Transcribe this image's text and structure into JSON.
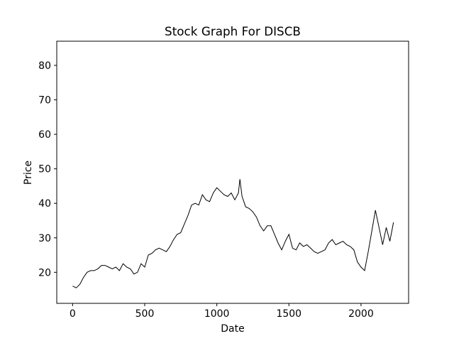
{
  "chart_data": {
    "type": "line",
    "title": "Stock Graph For DISCB",
    "xlabel": "Date",
    "ylabel": "Price",
    "xlim": [
      -110,
      2330
    ],
    "ylim": [
      11,
      87
    ],
    "x_ticks": [
      0,
      500,
      1000,
      1500,
      2000
    ],
    "y_ticks": [
      20,
      30,
      40,
      50,
      60,
      70,
      80
    ],
    "x_tick_labels": [
      "0",
      "500",
      "1000",
      "1500",
      "2000"
    ],
    "y_tick_labels": [
      "20",
      "30",
      "40",
      "50",
      "60",
      "70",
      "80"
    ],
    "grid": false,
    "legend": "none",
    "line_color": "#000000",
    "series": [
      {
        "x": [
          0,
          25,
          50,
          75,
          100,
          125,
          150,
          175,
          200,
          225,
          250,
          275,
          300,
          325,
          350,
          375,
          400,
          425,
          450,
          475,
          500,
          525,
          550,
          575,
          600,
          625,
          650,
          675,
          700,
          725,
          750,
          775,
          800,
          825,
          850,
          875,
          900,
          925,
          950,
          975,
          1000,
          1025,
          1050,
          1075,
          1100,
          1125,
          1150,
          1160,
          1175,
          1200,
          1225,
          1250,
          1275,
          1300,
          1325,
          1350,
          1375,
          1400,
          1425,
          1450,
          1475,
          1500,
          1525,
          1550,
          1575,
          1600,
          1625,
          1650,
          1675,
          1700,
          1725,
          1750,
          1775,
          1800,
          1825,
          1850,
          1875,
          1900,
          1925,
          1950,
          1975,
          2000,
          2025,
          2050,
          2075,
          2100,
          2125,
          2150,
          2175,
          2200,
          2225
        ],
        "values": [
          16.0,
          15.5,
          16.5,
          18.5,
          20.0,
          20.5,
          20.5,
          21.0,
          22.0,
          22.0,
          21.5,
          21.0,
          21.5,
          20.5,
          22.5,
          21.5,
          21.0,
          19.5,
          20.0,
          22.5,
          21.5,
          25.0,
          25.5,
          26.5,
          27.0,
          26.5,
          26.0,
          27.5,
          29.5,
          31.0,
          31.5,
          34.0,
          36.5,
          39.5,
          40.0,
          39.5,
          42.5,
          41.0,
          40.5,
          43.0,
          44.5,
          43.5,
          42.5,
          42.0,
          43.0,
          41.0,
          43.0,
          47.0,
          42.0,
          39.0,
          38.5,
          37.5,
          36.0,
          33.5,
          32.0,
          33.5,
          33.5,
          31.0,
          28.5,
          26.5,
          29.0,
          31.0,
          27.0,
          26.5,
          28.5,
          27.5,
          28.0,
          27.0,
          26.0,
          25.5,
          26.0,
          26.5,
          28.5,
          29.5,
          28.0,
          28.5,
          29.0,
          28.0,
          27.5,
          26.5,
          23.0,
          21.5,
          20.5,
          26.0,
          32.0,
          38.0,
          33.0,
          28.0,
          33.0,
          29.0,
          34.5
        ]
      }
    ]
  }
}
